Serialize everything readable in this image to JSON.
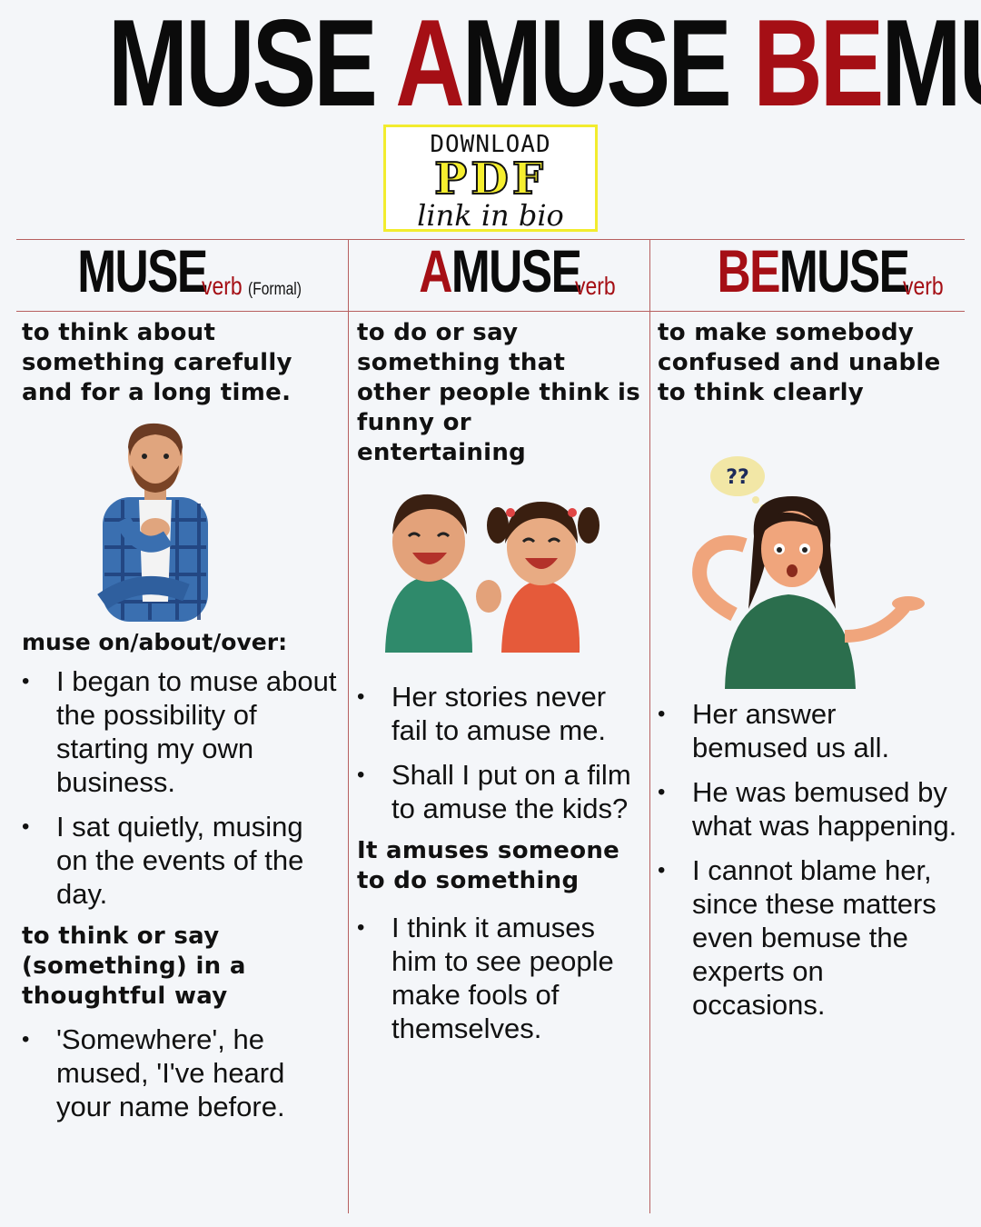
{
  "title": {
    "muse": "MUSE",
    "a": "A",
    "amuse_rest": "MUSE",
    "be": "BE",
    "bemuse_rest": "MUSE"
  },
  "download": {
    "line1": "DOWNLOAD",
    "line2": "PDF",
    "line3": "link in bio"
  },
  "columns": [
    {
      "prefix": "",
      "word": "MUSE",
      "pos": "verb",
      "note": "(Formal)",
      "definition": "to think about something carefully and for a long time.",
      "sub_label": "muse on/about/over:",
      "examples": [
        "I began to muse about the possibility of starting my own business.",
        "I sat quietly, musing on the events of the day."
      ],
      "definition2": "to think or say (something) in a thoughtful way",
      "examples2": [
        "'Somewhere', he mused, 'I've heard your name before."
      ]
    },
    {
      "prefix": "A",
      "word": "MUSE",
      "pos": "verb",
      "definition": "to do or say something that other people think is funny or entertaining",
      "examples": [
        "Her stories never fail to amuse me.",
        "Shall I put on a film to amuse the kids?"
      ],
      "definition2": "It amuses someone to do something",
      "examples2": [
        "I think it amuses him to see people make fools of themselves."
      ]
    },
    {
      "prefix": "BE",
      "word": "MUSE",
      "pos": "verb",
      "definition": "to make somebody confused and unable to think clearly",
      "thought_bubble": "??",
      "examples": [
        "Her answer bemused us all.",
        "He was bemused by what was happening.",
        "I cannot blame her, since these matters even bemuse the experts on occasions."
      ]
    }
  ],
  "colors": {
    "accent_red": "#a50f15",
    "divider": "#b76060",
    "download_yellow": "#f2ec2e"
  },
  "icons": [
    "thinking-man-illustration",
    "laughing-kids-illustration",
    "confused-woman-illustration"
  ]
}
